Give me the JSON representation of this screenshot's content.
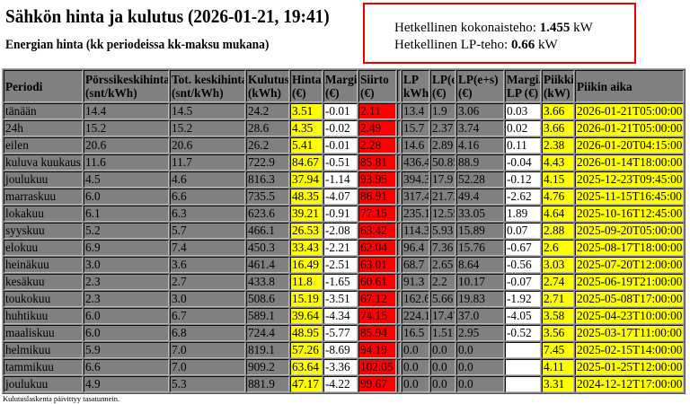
{
  "header": {
    "title": "Sähkön hinta ja kulutus (2026-01-21, 19:41)",
    "subtitle": "Energian hinta (kk periodeissa kk-maksu mukana)"
  },
  "power": {
    "total_label": "Hetkellinen kokonaisteho:",
    "total_value": "1.455",
    "total_unit": "kW",
    "lp_label": "Hetkellinen LP-teho:",
    "lp_value": "0.66",
    "lp_unit": "kW"
  },
  "colors": {
    "highlight_yellow": "#ffff00",
    "highlight_red": "#ff0000",
    "table_bg": "#808080",
    "box_border": "#ee0000"
  },
  "table": {
    "columns": [
      [
        "Periodi"
      ],
      [
        "Pörssikeskihinta",
        "(snt/kWh)"
      ],
      [
        "Tot. keskihinta",
        "(snt/kWh)"
      ],
      [
        "Kulutus",
        "(kWh)"
      ],
      [
        "Hinta",
        "(€)"
      ],
      [
        "Margi.",
        "(€)"
      ],
      [
        "Siirto",
        "(€)"
      ],
      [
        ""
      ],
      [
        "LP",
        "kWh"
      ],
      [
        "LP(e)",
        "(€)"
      ],
      [
        "LP(e+s)",
        "(€)"
      ],
      [
        "Margi.",
        "LP (€)"
      ],
      [
        "Piikki",
        "(kW)"
      ],
      [
        "Piikin aika"
      ]
    ],
    "rows": [
      [
        "tänään",
        "14.4",
        "14.5",
        "24.2",
        "3.51",
        "-0.01",
        "2.11",
        "",
        "13.4",
        "1.9",
        "3.06",
        "0.03",
        "3.66",
        "2026-01-21T05:00:00"
      ],
      [
        "24h",
        "15.2",
        "15.2",
        "28.6",
        "4.35",
        "-0.02",
        "2.49",
        "",
        "15.7",
        "2.37",
        "3.74",
        "0.02",
        "3.66",
        "2026-01-21T05:00:00"
      ],
      [
        "eilen",
        "20.6",
        "20.6",
        "26.2",
        "5.41",
        "-0.01",
        "2.28",
        "",
        "14.6",
        "2.89",
        "4.16",
        "0.11",
        "2.38",
        "2026-01-20T04:15:00"
      ],
      [
        "kuluva kuukausi",
        "11.6",
        "11.7",
        "722.9",
        "84.67",
        "-0.51",
        "85.81",
        "",
        "436.4",
        "50.85",
        "88.9",
        "-0.04",
        "4.43",
        "2026-01-14T18:00:00"
      ],
      [
        "joulukuu",
        "4.5",
        "4.6",
        "816.3",
        "37.94",
        "-1.14",
        "93.95",
        "",
        "394.3",
        "17.9",
        "52.28",
        "-0.12",
        "4.15",
        "2025-12-23T09:45:00"
      ],
      [
        "marraskuu",
        "6.0",
        "6.6",
        "735.5",
        "48.35",
        "-4.07",
        "86.91",
        "",
        "317.4",
        "21.73",
        "49.4",
        "-2.62",
        "4.76",
        "2025-11-15T16:45:00"
      ],
      [
        "lokakuu",
        "6.1",
        "6.3",
        "623.6",
        "39.21",
        "-0.91",
        "77.15",
        "",
        "235.1",
        "12.55",
        "33.05",
        "1.89",
        "4.64",
        "2025-10-16T12:45:00"
      ],
      [
        "syyskuu",
        "5.2",
        "5.7",
        "466.1",
        "26.53",
        "-2.08",
        "63.42",
        "",
        "114.3",
        "5.93",
        "15.89",
        "0.07",
        "2.88",
        "2025-09-20T05:00:00"
      ],
      [
        "elokuu",
        "6.9",
        "7.4",
        "450.3",
        "33.43",
        "-2.21",
        "62.04",
        "",
        "96.4",
        "7.36",
        "15.76",
        "-0.67",
        "2.6",
        "2025-08-17T18:00:00"
      ],
      [
        "heinäkuu",
        "3.0",
        "3.6",
        "461.4",
        "16.49",
        "-2.51",
        "63.01",
        "",
        "68.7",
        "2.65",
        "8.64",
        "-0.56",
        "3.03",
        "2025-07-20T12:00:00"
      ],
      [
        "kesäkuu",
        "2.3",
        "2.7",
        "433.8",
        "11.8",
        "-1.65",
        "60.61",
        "",
        "91.3",
        "2.2",
        "10.17",
        "-0.07",
        "2.74",
        "2025-06-19T21:00:00"
      ],
      [
        "toukokuu",
        "2.3",
        "3.0",
        "508.6",
        "15.19",
        "-3.51",
        "67.12",
        "",
        "162.6",
        "5.66",
        "19.83",
        "-1.92",
        "2.71",
        "2025-05-08T17:00:00"
      ],
      [
        "huhtikuu",
        "6.0",
        "6.7",
        "589.1",
        "39.64",
        "-4.34",
        "74.15",
        "",
        "224.1",
        "17.47",
        "37.0",
        "-4.05",
        "3.58",
        "2025-04-23T10:00:00"
      ],
      [
        "maaliskuu",
        "6.0",
        "6.8",
        "724.4",
        "48.95",
        "-5.77",
        "85.94",
        "",
        "16.5",
        "1.51",
        "2.95",
        "-0.52",
        "3.56",
        "2025-03-17T11:00:00"
      ],
      [
        "helmikuu",
        "5.9",
        "7.0",
        "819.1",
        "57.26",
        "-8.69",
        "94.19",
        "",
        "0.0",
        "0.0",
        "0.0",
        "",
        "7.45",
        "2025-02-15T14:00:00"
      ],
      [
        "tammikuu",
        "6.6",
        "7.0",
        "909.2",
        "63.64",
        "-3.36",
        "102.05",
        "",
        "0.0",
        "0.0",
        "0.0",
        "",
        "4.11",
        "2025-01-25T12:00:00"
      ],
      [
        "joulukuu",
        "4.9",
        "5.3",
        "881.9",
        "47.17",
        "-4.22",
        "99.67",
        "",
        "0.0",
        "0.0",
        "0.0",
        "",
        "3.31",
        "2024-12-12T17:00:00"
      ]
    ]
  },
  "footer": {
    "note": "Kulutuslaskenta päivittyy tasatunnein."
  }
}
